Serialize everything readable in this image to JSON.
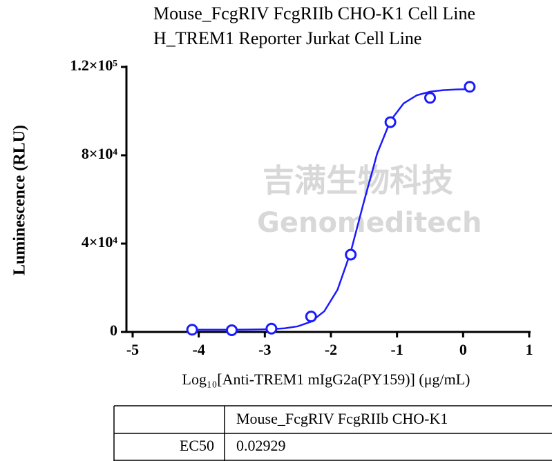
{
  "chart_data": {
    "type": "scatter",
    "title": [
      "Mouse_FcgRIV FcgRIIb CHO-K1 Cell Line",
      "H_TREM1 Reporter Jurkat Cell Line"
    ],
    "xlabel": "Log₁₀[Anti-TREM1 mIgG2a(PY159)] (μg/mL)",
    "ylabel": "Luminescence (RLU)",
    "color": "#1a1aff",
    "points": {
      "x": [
        -4.1,
        -3.5,
        -2.9,
        -2.3,
        -1.7,
        -1.1,
        -0.5,
        0.1
      ],
      "values": [
        1000,
        800,
        1500,
        7000,
        35000,
        95000,
        106000,
        111000
      ]
    },
    "curve": {
      "x": [
        -4.1,
        -3.9,
        -3.7,
        -3.5,
        -3.3,
        -3.1,
        -2.9,
        -2.7,
        -2.5,
        -2.3,
        -2.1,
        -1.9,
        -1.7,
        -1.5,
        -1.3,
        -1.1,
        -0.9,
        -0.7,
        -0.5,
        -0.3,
        -0.1,
        0.1
      ],
      "values": [
        1000,
        1003,
        1008,
        1020,
        1048,
        1114,
        1273,
        1653,
        2560,
        4657,
        9385,
        19133,
        36275,
        59072,
        80795,
        95618,
        103490,
        107190,
        108810,
        109500,
        109790,
        109910
      ]
    },
    "xlim": [
      -5,
      1
    ],
    "xticks": [
      -5,
      -4,
      -3,
      -2,
      -1,
      0,
      1
    ],
    "ylim": [
      0,
      120000
    ],
    "yticks": [
      0,
      {
        "value": 40000,
        "label": "4×10⁴"
      },
      {
        "value": 80000,
        "label": "8×10⁴"
      },
      {
        "value": 120000,
        "label": "1.2×10⁵"
      }
    ]
  },
  "watermark": {
    "cn": "吉满生物科技",
    "en": "Genomeditech"
  },
  "table": {
    "header": [
      "Mouse_FcgRIV FcgRIIb CHO-K1"
    ],
    "rows": [
      [
        "EC50",
        "0.02929"
      ]
    ]
  }
}
